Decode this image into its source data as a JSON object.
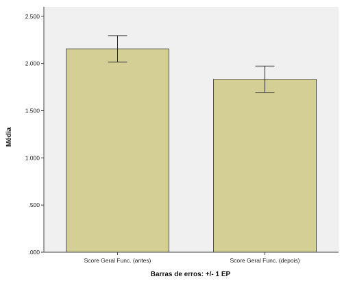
{
  "chart_data": {
    "type": "bar",
    "categories": [
      "Score Geral Func. (antes)",
      "Score Geral Func. (depois)"
    ],
    "values": [
      2.155,
      1.833
    ],
    "error_low": [
      2.015,
      1.693
    ],
    "error_high": [
      2.295,
      1.973
    ],
    "ylim": [
      0,
      2.6
    ],
    "yticks": [
      0,
      0.5,
      1.0,
      1.5,
      2.0,
      2.5
    ],
    "ytick_labels": [
      ".000",
      ".500",
      "1.000",
      "1.500",
      "2.000",
      "2.500"
    ],
    "xlabel": "Barras de erros: +/- 1 EP",
    "ylabel": "Média",
    "grid": false,
    "colors": {
      "plot_background": "#f0f0f0",
      "bar_fill": "#d4cf94",
      "bar_stroke": "#555555",
      "axis": "#444444",
      "error_bar": "#222222"
    }
  }
}
